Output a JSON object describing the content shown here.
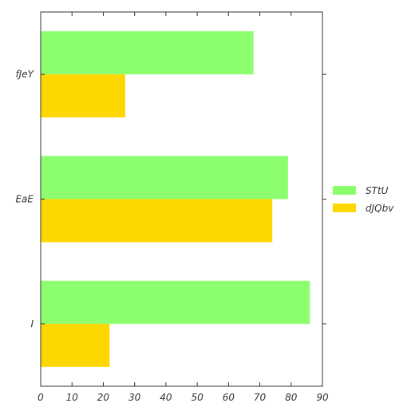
{
  "chart_data": {
    "type": "bar",
    "orientation": "horizontal",
    "categories": [
      "fJeY",
      "EaE",
      "I"
    ],
    "series": [
      {
        "name": "STtU",
        "values": [
          68,
          79,
          86
        ],
        "color": "#8cff6e"
      },
      {
        "name": "dJQbv",
        "values": [
          27,
          74,
          22
        ],
        "color": "#ffd700"
      }
    ],
    "xlim": [
      0,
      90
    ],
    "xticks": [
      "0",
      "10",
      "20",
      "30",
      "40",
      "50",
      "60",
      "70",
      "80",
      "90"
    ],
    "grid": false,
    "legend_position": "right"
  }
}
